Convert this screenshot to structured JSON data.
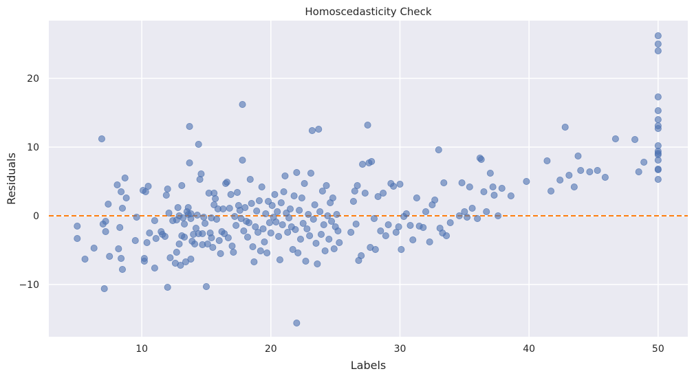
{
  "chart_data": {
    "type": "scatter",
    "title": "Homoscedasticity Check",
    "xlabel": "Labels",
    "ylabel": "Residuals",
    "xlim": [
      2.8,
      52.3
    ],
    "ylim": [
      -17.6,
      28.4
    ],
    "x_ticks": [
      10,
      20,
      30,
      40,
      50
    ],
    "x_tick_labels": [
      "10",
      "20",
      "30",
      "40",
      "50"
    ],
    "y_ticks": [
      -10,
      0,
      10,
      20
    ],
    "y_tick_labels": [
      "−10",
      "0",
      "10",
      "20"
    ],
    "grid": true,
    "reference_line": {
      "y": 0,
      "style": "dashed",
      "color": "#ff7f0e"
    },
    "colors": {
      "background": "#eaeaf2",
      "grid": "#ffffff",
      "points": "#4c72b0"
    },
    "points": [
      [
        5.0,
        -1.5
      ],
      [
        5.0,
        -3.3
      ],
      [
        5.6,
        -6.3
      ],
      [
        6.3,
        -4.7
      ],
      [
        6.9,
        11.2
      ],
      [
        7.0,
        -1.2
      ],
      [
        7.1,
        -10.6
      ],
      [
        7.2,
        -0.8
      ],
      [
        7.2,
        -2.3
      ],
      [
        7.4,
        1.7
      ],
      [
        7.5,
        -5.9
      ],
      [
        8.1,
        4.5
      ],
      [
        8.2,
        -4.8
      ],
      [
        8.3,
        -1.7
      ],
      [
        8.4,
        3.5
      ],
      [
        8.4,
        -6.2
      ],
      [
        8.5,
        1.1
      ],
      [
        8.5,
        -7.8
      ],
      [
        8.7,
        5.5
      ],
      [
        8.8,
        2.6
      ],
      [
        9.5,
        -3.6
      ],
      [
        9.6,
        -0.2
      ],
      [
        10.1,
        3.7
      ],
      [
        10.2,
        -6.6
      ],
      [
        10.2,
        -6.2
      ],
      [
        10.3,
        3.5
      ],
      [
        10.4,
        -3.9
      ],
      [
        10.5,
        4.3
      ],
      [
        10.6,
        -2.5
      ],
      [
        11.0,
        -0.7
      ],
      [
        11.0,
        -7.6
      ],
      [
        11.1,
        -3.3
      ],
      [
        11.5,
        -2.3
      ],
      [
        11.6,
        -2.7
      ],
      [
        11.8,
        -3.0
      ],
      [
        11.9,
        3.0
      ],
      [
        12.0,
        3.9
      ],
      [
        12.0,
        -10.4
      ],
      [
        12.1,
        0.4
      ],
      [
        12.2,
        -6.1
      ],
      [
        12.4,
        -0.7
      ],
      [
        12.6,
        -6.9
      ],
      [
        12.7,
        -5.3
      ],
      [
        12.7,
        -0.6
      ],
      [
        12.8,
        1.2
      ],
      [
        12.9,
        0.0
      ],
      [
        12.9,
        -4.1
      ],
      [
        13.0,
        -7.2
      ],
      [
        13.1,
        -2.9
      ],
      [
        13.1,
        4.4
      ],
      [
        13.2,
        -0.3
      ],
      [
        13.3,
        -3.1
      ],
      [
        13.3,
        -1.2
      ],
      [
        13.4,
        -6.7
      ],
      [
        13.5,
        0.6
      ],
      [
        13.6,
        0.2
      ],
      [
        13.6,
        1.2
      ],
      [
        13.7,
        13.0
      ],
      [
        13.7,
        7.7
      ],
      [
        13.8,
        0.3
      ],
      [
        13.8,
        -0.4
      ],
      [
        13.8,
        -6.3
      ],
      [
        13.9,
        -3.7
      ],
      [
        14.0,
        -2.7
      ],
      [
        14.1,
        -4.1
      ],
      [
        14.2,
        -1.8
      ],
      [
        14.3,
        0.1
      ],
      [
        14.4,
        -2.6
      ],
      [
        14.4,
        10.4
      ],
      [
        14.5,
        5.3
      ],
      [
        14.6,
        6.1
      ],
      [
        14.7,
        -2.6
      ],
      [
        14.7,
        -4.2
      ],
      [
        14.8,
        -0.2
      ],
      [
        14.9,
        -1.1
      ],
      [
        15.0,
        -10.3
      ],
      [
        15.1,
        -4.1
      ],
      [
        15.2,
        3.3
      ],
      [
        15.3,
        -2.5
      ],
      [
        15.4,
        -3.2
      ],
      [
        15.4,
        -0.3
      ],
      [
        15.5,
        -4.6
      ],
      [
        15.6,
        1.6
      ],
      [
        15.6,
        3.3
      ],
      [
        15.7,
        2.5
      ],
      [
        15.8,
        -0.5
      ],
      [
        15.9,
        1.0
      ],
      [
        16.0,
        -3.6
      ],
      [
        16.1,
        -5.5
      ],
      [
        16.2,
        -2.3
      ],
      [
        16.3,
        1.0
      ],
      [
        16.4,
        -2.6
      ],
      [
        16.5,
        4.7
      ],
      [
        16.6,
        4.9
      ],
      [
        16.7,
        -3.2
      ],
      [
        16.8,
        1.1
      ],
      [
        16.9,
        3.1
      ],
      [
        17.0,
        -4.4
      ],
      [
        17.1,
        -5.3
      ],
      [
        17.2,
        -0.1
      ],
      [
        17.3,
        -1.4
      ],
      [
        17.4,
        3.4
      ],
      [
        17.5,
        1.5
      ],
      [
        17.6,
        0.8
      ],
      [
        17.7,
        -0.4
      ],
      [
        17.8,
        16.2
      ],
      [
        17.8,
        8.1
      ],
      [
        17.9,
        -2.2
      ],
      [
        18.0,
        1.2
      ],
      [
        18.1,
        -0.8
      ],
      [
        18.2,
        -3.1
      ],
      [
        18.3,
        -1.0
      ],
      [
        18.4,
        5.3
      ],
      [
        18.5,
        1.8
      ],
      [
        18.6,
        -4.5
      ],
      [
        18.7,
        -6.7
      ],
      [
        18.8,
        -1.6
      ],
      [
        18.9,
        0.7
      ],
      [
        19.0,
        -2.4
      ],
      [
        19.1,
        2.2
      ],
      [
        19.2,
        -5.1
      ],
      [
        19.3,
        4.2
      ],
      [
        19.4,
        -1.9
      ],
      [
        19.5,
        -3.8
      ],
      [
        19.6,
        0.3
      ],
      [
        19.7,
        -5.4
      ],
      [
        19.8,
        2.1
      ],
      [
        19.9,
        -1.0
      ],
      [
        20.0,
        -2.5
      ],
      [
        20.1,
        1.5
      ],
      [
        20.2,
        -0.2
      ],
      [
        20.3,
        3.1
      ],
      [
        20.4,
        -0.9
      ],
      [
        20.5,
        0.6
      ],
      [
        20.6,
        -3.0
      ],
      [
        20.7,
        -6.4
      ],
      [
        20.8,
        1.9
      ],
      [
        20.9,
        -1.3
      ],
      [
        21.0,
        3.5
      ],
      [
        21.1,
        5.8
      ],
      [
        21.2,
        0.4
      ],
      [
        21.3,
        -2.4
      ],
      [
        21.4,
        -0.3
      ],
      [
        21.5,
        1.0
      ],
      [
        21.6,
        -1.6
      ],
      [
        21.7,
        -4.9
      ],
      [
        21.8,
        2.9
      ],
      [
        21.9,
        -2.0
      ],
      [
        22.0,
        -15.6
      ],
      [
        22.0,
        6.3
      ],
      [
        22.1,
        -5.4
      ],
      [
        22.2,
        0.8
      ],
      [
        22.3,
        -3.4
      ],
      [
        22.4,
        2.6
      ],
      [
        22.5,
        -1.1
      ],
      [
        22.6,
        4.7
      ],
      [
        22.7,
        -6.6
      ],
      [
        22.8,
        -1.9
      ],
      [
        22.9,
        0.2
      ],
      [
        23.0,
        -2.9
      ],
      [
        23.1,
        6.2
      ],
      [
        23.2,
        12.4
      ],
      [
        23.3,
        -0.5
      ],
      [
        23.4,
        1.6
      ],
      [
        23.5,
        -4.0
      ],
      [
        23.6,
        -7.0
      ],
      [
        23.7,
        12.6
      ],
      [
        23.8,
        0.6
      ],
      [
        23.9,
        -2.7
      ],
      [
        24.0,
        3.6
      ],
      [
        24.1,
        -1.3
      ],
      [
        24.2,
        -5.1
      ],
      [
        24.3,
        4.4
      ],
      [
        24.4,
        0.0
      ],
      [
        24.5,
        -3.4
      ],
      [
        24.6,
        1.9
      ],
      [
        24.7,
        -0.8
      ],
      [
        24.8,
        2.6
      ],
      [
        24.9,
        -4.8
      ],
      [
        25.0,
        -1.6
      ],
      [
        25.1,
        0.2
      ],
      [
        25.2,
        -2.2
      ],
      [
        25.3,
        -3.9
      ],
      [
        26.2,
        -2.4
      ],
      [
        26.4,
        2.1
      ],
      [
        26.5,
        3.6
      ],
      [
        26.6,
        -1.2
      ],
      [
        26.7,
        4.4
      ],
      [
        26.8,
        -6.5
      ],
      [
        27.0,
        -5.8
      ],
      [
        27.1,
        7.5
      ],
      [
        27.3,
        3.3
      ],
      [
        27.5,
        13.2
      ],
      [
        27.6,
        7.7
      ],
      [
        27.7,
        -4.6
      ],
      [
        27.8,
        7.9
      ],
      [
        28.0,
        -0.4
      ],
      [
        28.1,
        -4.9
      ],
      [
        28.3,
        2.8
      ],
      [
        28.5,
        -2.2
      ],
      [
        28.7,
        3.3
      ],
      [
        28.9,
        -2.9
      ],
      [
        29.1,
        -1.3
      ],
      [
        29.3,
        4.7
      ],
      [
        29.5,
        4.3
      ],
      [
        29.7,
        -2.4
      ],
      [
        29.9,
        -1.6
      ],
      [
        30.0,
        4.6
      ],
      [
        30.1,
        -4.9
      ],
      [
        30.3,
        -0.1
      ],
      [
        30.5,
        0.3
      ],
      [
        30.8,
        -1.4
      ],
      [
        31.0,
        -3.5
      ],
      [
        31.3,
        2.6
      ],
      [
        31.5,
        -1.5
      ],
      [
        31.8,
        -1.7
      ],
      [
        32.0,
        0.6
      ],
      [
        32.3,
        -3.8
      ],
      [
        32.5,
        1.6
      ],
      [
        32.7,
        2.3
      ],
      [
        33.0,
        9.6
      ],
      [
        33.1,
        -1.8
      ],
      [
        33.3,
        -2.5
      ],
      [
        33.4,
        4.8
      ],
      [
        33.6,
        -2.9
      ],
      [
        33.9,
        -1.0
      ],
      [
        34.6,
        0.0
      ],
      [
        34.8,
        4.8
      ],
      [
        35.0,
        0.6
      ],
      [
        35.2,
        -0.2
      ],
      [
        35.4,
        4.2
      ],
      [
        35.6,
        1.1
      ],
      [
        36.0,
        -0.4
      ],
      [
        36.2,
        8.4
      ],
      [
        36.3,
        8.2
      ],
      [
        36.5,
        3.5
      ],
      [
        36.7,
        0.6
      ],
      [
        37.0,
        6.2
      ],
      [
        37.2,
        4.2
      ],
      [
        37.3,
        3.0
      ],
      [
        37.6,
        0.0
      ],
      [
        37.9,
        4.0
      ],
      [
        38.6,
        2.9
      ],
      [
        39.8,
        5.0
      ],
      [
        41.4,
        8.0
      ],
      [
        41.7,
        3.6
      ],
      [
        42.4,
        5.2
      ],
      [
        42.8,
        12.9
      ],
      [
        43.1,
        5.9
      ],
      [
        43.5,
        4.2
      ],
      [
        43.8,
        8.7
      ],
      [
        44.0,
        6.6
      ],
      [
        44.7,
        6.4
      ],
      [
        45.3,
        6.6
      ],
      [
        45.9,
        5.6
      ],
      [
        46.7,
        11.2
      ],
      [
        48.2,
        11.1
      ],
      [
        48.5,
        6.4
      ],
      [
        48.9,
        7.8
      ],
      [
        50.0,
        26.2
      ],
      [
        50.0,
        25.0
      ],
      [
        50.0,
        24.0
      ],
      [
        50.0,
        17.3
      ],
      [
        50.0,
        15.3
      ],
      [
        50.0,
        14.0
      ],
      [
        50.0,
        13.1
      ],
      [
        50.0,
        12.7
      ],
      [
        50.0,
        10.2
      ],
      [
        50.0,
        9.4
      ],
      [
        50.0,
        9.1
      ],
      [
        50.0,
        8.9
      ],
      [
        50.0,
        8.1
      ],
      [
        50.0,
        6.8
      ],
      [
        50.0,
        6.7
      ],
      [
        50.0,
        5.3
      ]
    ]
  }
}
